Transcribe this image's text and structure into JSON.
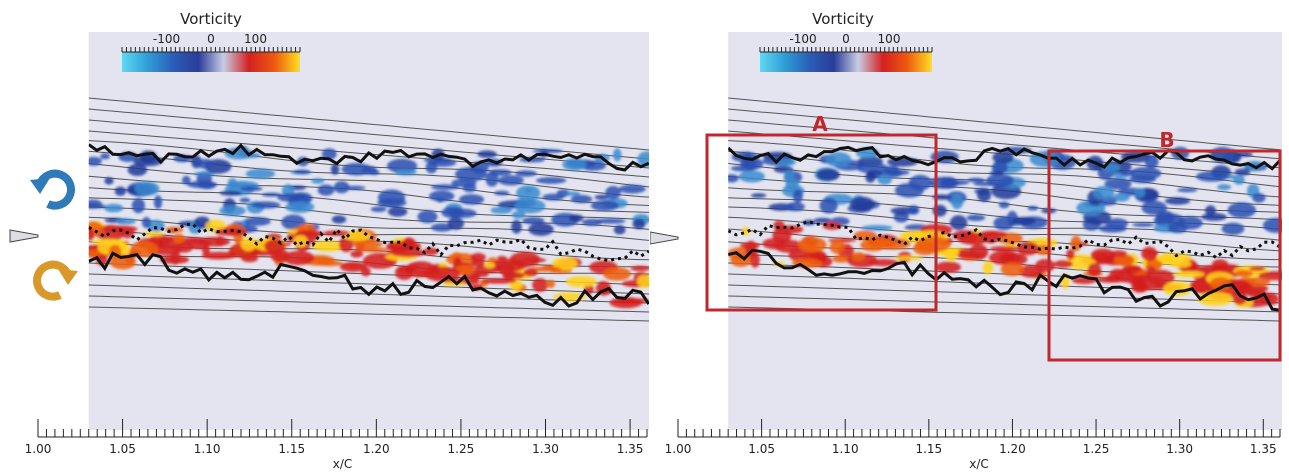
{
  "chart_data": [
    {
      "type": "heatmap",
      "title": "Vorticity",
      "colorbar": {
        "ticks": [
          "-100",
          "0",
          "100"
        ],
        "tick_values": [
          -100,
          0,
          100
        ],
        "range": [
          -200,
          200
        ],
        "colors": [
          "#60d8f0",
          "#2f9ed8",
          "#2a5fb8",
          "#2a3c9a",
          "#c8cce4",
          "#d42020",
          "#ee5a10",
          "#ffe020"
        ]
      },
      "xlabel": "x/C",
      "xlim": [
        1.0,
        1.36
      ],
      "x_tick_labels": [
        "1.00",
        "1.05",
        "1.10",
        "1.15",
        "1.20",
        "1.25",
        "1.30",
        "1.35"
      ],
      "x_tick_values": [
        1.0,
        1.05,
        1.1,
        1.15,
        1.2,
        1.25,
        1.3,
        1.35
      ],
      "data_extent_x": [
        1.03,
        1.36
      ],
      "icons": [
        "clockwise-rotation-icon",
        "counterclockwise-rotation-icon",
        "airfoil-trailing-edge-icon"
      ],
      "icon_colors": {
        "clockwise": "#2f7ab8",
        "counterclockwise": "#d8982a"
      },
      "annotations": []
    },
    {
      "type": "heatmap",
      "title": "Vorticity",
      "colorbar": {
        "ticks": [
          "-100",
          "0",
          "100"
        ],
        "tick_values": [
          -100,
          0,
          100
        ],
        "range": [
          -200,
          200
        ],
        "colors": [
          "#60d8f0",
          "#2f9ed8",
          "#2a5fb8",
          "#2a3c9a",
          "#c8cce4",
          "#d42020",
          "#ee5a10",
          "#ffe020"
        ]
      },
      "xlabel": "x/C",
      "xlim": [
        1.0,
        1.36
      ],
      "x_tick_labels": [
        "1.00",
        "1.05",
        "1.10",
        "1.15",
        "1.20",
        "1.25",
        "1.30",
        "1.35"
      ],
      "x_tick_values": [
        1.0,
        1.05,
        1.1,
        1.15,
        1.2,
        1.25,
        1.3,
        1.35
      ],
      "data_extent_x": [
        1.03,
        1.36
      ],
      "icons": [
        "airfoil-trailing-edge-icon"
      ],
      "annotations": [
        {
          "label": "A",
          "color": "#c0282d"
        },
        {
          "label": "B",
          "color": "#c0282d"
        }
      ]
    }
  ]
}
